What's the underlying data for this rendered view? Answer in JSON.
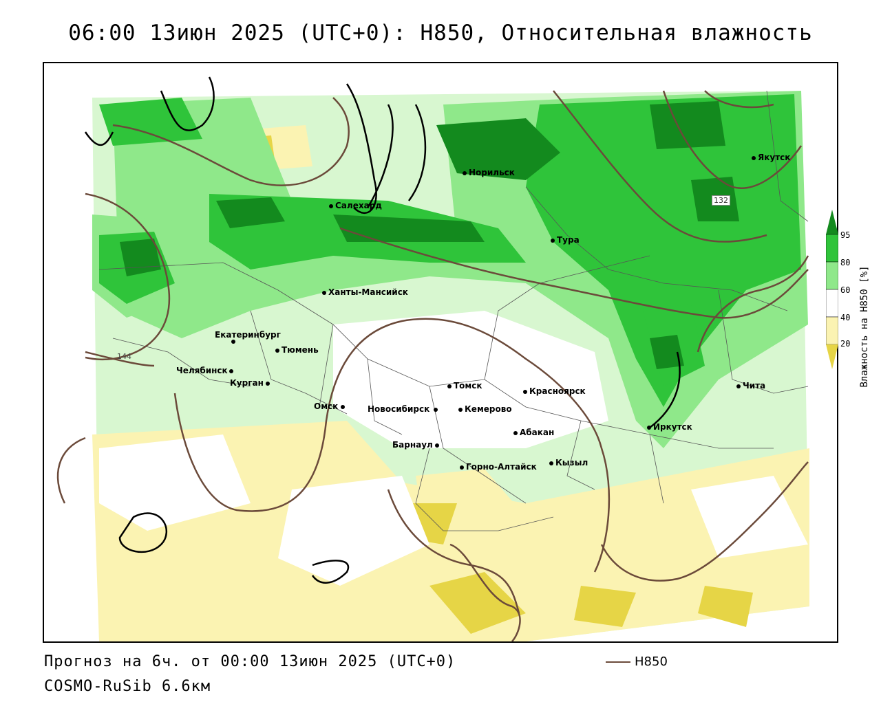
{
  "title": "06:00 13июн 2025 (UTC+0): H850, Относительная влажность",
  "footer": {
    "forecast": "Прогноз на 6ч. от 00:00 13июн 2025 (UTC+0)",
    "model": "COSMO-RuSib 6.6км",
    "line_legend": "H850"
  },
  "legend": {
    "title": "Влажность на H850 [%]",
    "ticks": [
      "95",
      "80",
      "60",
      "40",
      "20"
    ],
    "colors": [
      "#138a1e",
      "#2fc43a",
      "#8fe88a",
      "#d8f7d0",
      "#ffffff",
      "#fbf3b2",
      "#e6d546"
    ]
  },
  "contour_color": "#6b4a3a",
  "contour_labels": [
    {
      "text": "132"
    },
    {
      "text": "144"
    }
  ],
  "cities": [
    {
      "name": "Норильск"
    },
    {
      "name": "Якутск"
    },
    {
      "name": "Салехард"
    },
    {
      "name": "Тура"
    },
    {
      "name": "Ханты-Мансийск"
    },
    {
      "name": "Екатеринбург"
    },
    {
      "name": "Тюмень"
    },
    {
      "name": "Челябинск"
    },
    {
      "name": "Курган"
    },
    {
      "name": "Омск"
    },
    {
      "name": "Новосибирск"
    },
    {
      "name": "Томск"
    },
    {
      "name": "Кемерово"
    },
    {
      "name": "Красноярск"
    },
    {
      "name": "Абакан"
    },
    {
      "name": "Барнаул"
    },
    {
      "name": "Горно-Алтайск"
    },
    {
      "name": "Кызыл"
    },
    {
      "name": "Иркутск"
    },
    {
      "name": "Чита"
    }
  ]
}
